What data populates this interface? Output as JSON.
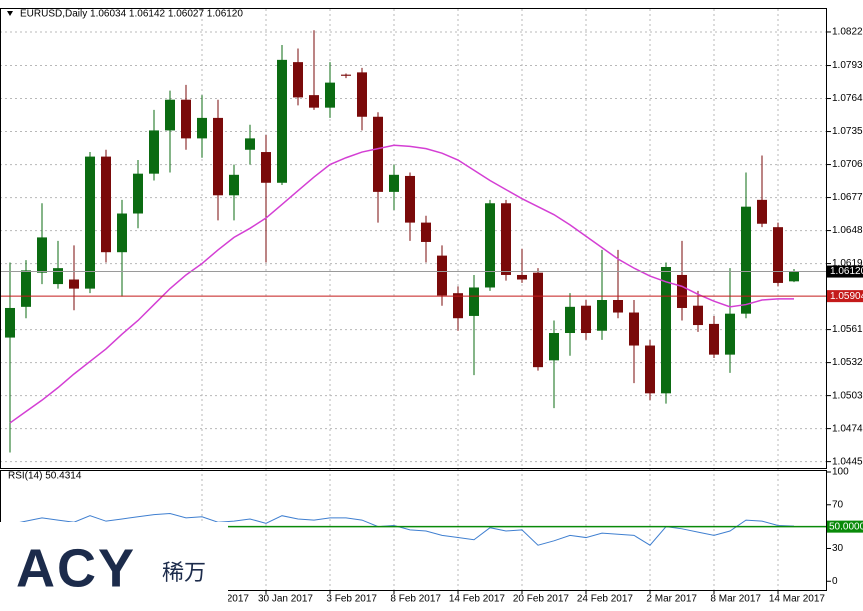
{
  "header": "EURUSD,Daily  1.06034 1.06142 1.06027 1.06120",
  "logo": {
    "brand": "ACY",
    "cn": "稀万"
  },
  "chart_data": [
    {
      "type": "candlestick",
      "categories": [
        null,
        null,
        null,
        null,
        null,
        null,
        null,
        null,
        null,
        null,
        null,
        null,
        "2017",
        null,
        null,
        null,
        "30 Jan 2017",
        null,
        null,
        null,
        "3 Feb 2017",
        null,
        null,
        null,
        "8 Feb 2017",
        null,
        null,
        null,
        "14 Feb 2017",
        null,
        null,
        null,
        "20 Feb 2017",
        null,
        null,
        null,
        "24 Feb 2017",
        null,
        null,
        null,
        "2 Mar 2017",
        null,
        null,
        null,
        "8 Mar 2017",
        null,
        null,
        null,
        "14 Mar 2017",
        null
      ],
      "open": [
        1.0554,
        1.0581,
        1.0611,
        1.0601,
        1.0605,
        1.0597,
        1.0713,
        1.0629,
        1.0663,
        1.0698,
        1.0736,
        1.0763,
        1.0729,
        1.0747,
        1.0679,
        1.0719,
        1.0717,
        1.069,
        1.0796,
        1.0767,
        1.0756,
        1.0785,
        1.0787,
        1.0748,
        1.0682,
        1.0696,
        1.0655,
        1.0626,
        1.0593,
        1.0573,
        1.0598,
        1.0672,
        1.0609,
        1.0611,
        1.0534,
        1.0558,
        1.0582,
        1.056,
        1.0587,
        1.0576,
        1.0547,
        1.0505,
        1.0609,
        1.0582,
        1.0566,
        1.0539,
        1.0575,
        1.0675,
        1.0651,
        1.06034
      ],
      "high": [
        1.062,
        1.0622,
        1.0672,
        1.0639,
        1.0635,
        1.0717,
        1.0719,
        1.0675,
        1.071,
        1.0754,
        1.0771,
        1.0776,
        1.0767,
        1.0763,
        1.0706,
        1.0741,
        1.0732,
        1.0811,
        1.0808,
        1.0824,
        1.0796,
        1.0786,
        1.0791,
        1.0752,
        1.0706,
        1.0699,
        1.0661,
        1.0635,
        1.0599,
        1.0609,
        1.0675,
        1.0675,
        1.0632,
        1.0615,
        1.0569,
        1.0593,
        1.0587,
        1.0631,
        1.0631,
        1.0587,
        1.0552,
        1.062,
        1.0639,
        1.0595,
        1.0573,
        1.0615,
        1.0699,
        1.0714,
        1.0655,
        1.06142
      ],
      "low": [
        1.0453,
        1.0571,
        1.0601,
        1.0597,
        1.0578,
        1.0593,
        1.062,
        1.059,
        1.065,
        1.0692,
        1.0699,
        1.0719,
        1.0712,
        1.0657,
        1.0657,
        1.0706,
        1.062,
        1.0688,
        1.0758,
        1.0754,
        1.0747,
        1.0782,
        1.0736,
        1.0655,
        1.0666,
        1.0639,
        1.062,
        1.0582,
        1.056,
        1.0521,
        1.0595,
        1.0604,
        1.0602,
        1.0525,
        1.0492,
        1.0538,
        1.0552,
        1.0552,
        1.0571,
        1.0514,
        1.0499,
        1.0496,
        1.0569,
        1.0559,
        1.0536,
        1.0523,
        1.0571,
        1.0651,
        1.0599,
        1.06027
      ],
      "close": [
        1.058,
        1.0613,
        1.0642,
        1.0615,
        1.0597,
        1.0713,
        1.0629,
        1.0663,
        1.0698,
        1.0736,
        1.0763,
        1.0729,
        1.0747,
        1.0679,
        1.0697,
        1.0729,
        1.069,
        1.0798,
        1.0765,
        1.0756,
        1.0778,
        1.0784,
        1.0748,
        1.0682,
        1.0697,
        1.0655,
        1.0638,
        1.0591,
        1.0571,
        1.0598,
        1.0672,
        1.0609,
        1.0605,
        1.0528,
        1.0558,
        1.0581,
        1.0558,
        1.0587,
        1.0576,
        1.0547,
        1.0505,
        1.0616,
        1.058,
        1.0565,
        1.0539,
        1.0575,
        1.0669,
        1.0654,
        1.0602,
        1.0612
      ],
      "up_color": "#0b6b12",
      "down_color": "#7a0a0a",
      "ma": {
        "color": "#d43fd4",
        "values": [
          1.0479,
          1.0489,
          1.0499,
          1.051,
          1.0522,
          1.0533,
          1.0544,
          1.0557,
          1.0569,
          1.0583,
          1.0597,
          1.0609,
          1.0619,
          1.0631,
          1.0642,
          1.065,
          1.0659,
          1.0671,
          1.0683,
          1.0695,
          1.0706,
          1.0712,
          1.0717,
          1.072,
          1.0723,
          1.0722,
          1.072,
          1.0716,
          1.071,
          1.0701,
          1.0692,
          1.0684,
          1.0676,
          1.0669,
          1.0662,
          1.0653,
          1.0643,
          1.0633,
          1.0623,
          1.0615,
          1.0608,
          1.0603,
          1.0599,
          1.0592,
          1.0586,
          1.0581,
          1.0583,
          1.0587,
          1.0588,
          1.0588
        ]
      },
      "ylim": [
        1.04394,
        1.08418
      ],
      "yticks": [
        {
          "value": 1.08225,
          "label": "1.08225"
        },
        {
          "value": 1.0793,
          "label": "1.07930"
        },
        {
          "value": 1.0764,
          "label": "1.07640"
        },
        {
          "value": 1.0735,
          "label": "1.07350"
        },
        {
          "value": 1.0706,
          "label": "1.07060"
        },
        {
          "value": 1.0677,
          "label": "1.06770"
        },
        {
          "value": 1.0648,
          "label": "1.06480"
        },
        {
          "value": 1.0619,
          "label": "1.06190"
        },
        {
          "value": 1.0561,
          "label": "1.05610"
        },
        {
          "value": 1.0532,
          "label": "1.05320"
        },
        {
          "value": 1.0503,
          "label": "1.05030"
        },
        {
          "value": 1.0474,
          "label": "1.04740"
        },
        {
          "value": 1.0445,
          "label": "1.04450"
        }
      ],
      "price_lines": [
        {
          "value": 1.0612,
          "label": "1.06120",
          "color": "#9a9a9a",
          "box": "#000000"
        },
        {
          "value": 1.05904,
          "label": "1.05904",
          "color": "#c41a1a",
          "box": "#c41a1a"
        }
      ],
      "grid": true
    },
    {
      "type": "line",
      "title": "RSI(14) 50.4314",
      "color": "#3f7fd0",
      "values": [
        52,
        55,
        58,
        56,
        54,
        60,
        55,
        57,
        59,
        61,
        62,
        58,
        59,
        54,
        55,
        57,
        53,
        60,
        57,
        56,
        58,
        58,
        56,
        50,
        51,
        47,
        46,
        42,
        40,
        38,
        49,
        46,
        47,
        33,
        37,
        42,
        40,
        44,
        43,
        42,
        33,
        50,
        48,
        45,
        42,
        46,
        56,
        55,
        51,
        50.4314
      ],
      "ylim": [
        -8,
        100
      ],
      "yticks": [
        0,
        30,
        70,
        100
      ],
      "level": {
        "value": 50,
        "label": "50.0000",
        "color": "#0a8a0a"
      }
    }
  ]
}
